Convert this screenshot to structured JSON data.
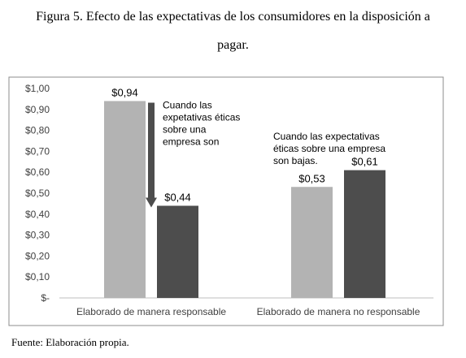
{
  "caption": {
    "line1": "Figura 5. Efecto de las expectativas de los consumidores en la disposición a",
    "line2": "pagar."
  },
  "source": "Fuente: Elaboración propia.",
  "chart_data": {
    "type": "bar",
    "title": "",
    "xlabel": "",
    "ylabel": "",
    "ylim": [
      0,
      1.0
    ],
    "yticks": [
      0,
      0.1,
      0.2,
      0.3,
      0.4,
      0.5,
      0.6,
      0.7,
      0.8,
      0.9,
      1.0
    ],
    "ytick_labels": [
      "$-",
      "$0,10",
      "$0,20",
      "$0,30",
      "$0,40",
      "$0,50",
      "$0,60",
      "$0,70",
      "$0,80",
      "$0,90",
      "$1,00"
    ],
    "grid": false,
    "legend": "none",
    "categories": [
      "Elaborado de manera responsable",
      "Elaborado de manera no responsable"
    ],
    "series": [
      {
        "color": "#b3b3b3",
        "values": [
          0.94,
          0.53
        ],
        "labels": [
          "$0,94",
          "$0,53"
        ]
      },
      {
        "color": "#4d4d4d",
        "values": [
          0.44,
          0.61
        ],
        "labels": [
          "$0,44",
          "$0,61"
        ]
      }
    ],
    "annotations": [
      {
        "lines": [
          "Cuando las",
          "expetativas éticas",
          "sobre una",
          "empresa son"
        ],
        "category": 0
      },
      {
        "lines": [
          "Cuando las expectativas",
          "éticas sobre una empresa",
          "son bajas."
        ],
        "category": 1
      }
    ],
    "arrow_color": "#4d4d4d"
  }
}
